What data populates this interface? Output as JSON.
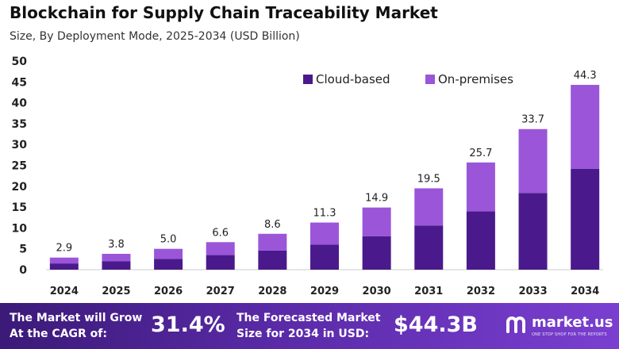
{
  "header": {
    "title": "Blockchain for Supply Chain Traceability Market",
    "subtitle": "Size, By Deployment Mode, 2025-2034 (USD Billion)"
  },
  "chart_data": {
    "type": "bar",
    "stacked": true,
    "categories": [
      "2024",
      "2025",
      "2026",
      "2027",
      "2028",
      "2029",
      "2030",
      "2031",
      "2032",
      "2033",
      "2034"
    ],
    "series": [
      {
        "name": "Cloud-based",
        "color": "#4a1a8c",
        "values": [
          1.5,
          2.0,
          2.6,
          3.5,
          4.6,
          6.0,
          8.0,
          10.6,
          14.0,
          18.4,
          24.2
        ]
      },
      {
        "name": "On-premises",
        "color": "#9b55d9",
        "values": [
          1.4,
          1.8,
          2.4,
          3.1,
          4.0,
          5.3,
          6.9,
          8.9,
          11.7,
          15.3,
          20.1
        ]
      }
    ],
    "totals": [
      2.9,
      3.8,
      5.0,
      6.6,
      8.6,
      11.3,
      14.9,
      19.5,
      25.7,
      33.7,
      44.3
    ],
    "total_labels": [
      "2.9",
      "3.8",
      "5.0",
      "6.6",
      "8.6",
      "11.3",
      "14.9",
      "19.5",
      "25.7",
      "33.7",
      "44.3"
    ],
    "ylim": [
      0,
      50
    ],
    "yticks": [
      0,
      5,
      10,
      15,
      20,
      25,
      30,
      35,
      40,
      45,
      50
    ],
    "grid": false,
    "legend_position": "top-right"
  },
  "footer": {
    "cagr_label_line1": "The Market will Grow",
    "cagr_label_line2": "At the CAGR of:",
    "cagr_value": "31.4%",
    "forecast_label_line1": "The Forecasted Market",
    "forecast_label_line2": "Size for 2034 in USD:",
    "forecast_value": "$44.3B",
    "brand_name": "market.us",
    "brand_tagline": "ONE STOP SHOP FOR THE REPORTS"
  }
}
